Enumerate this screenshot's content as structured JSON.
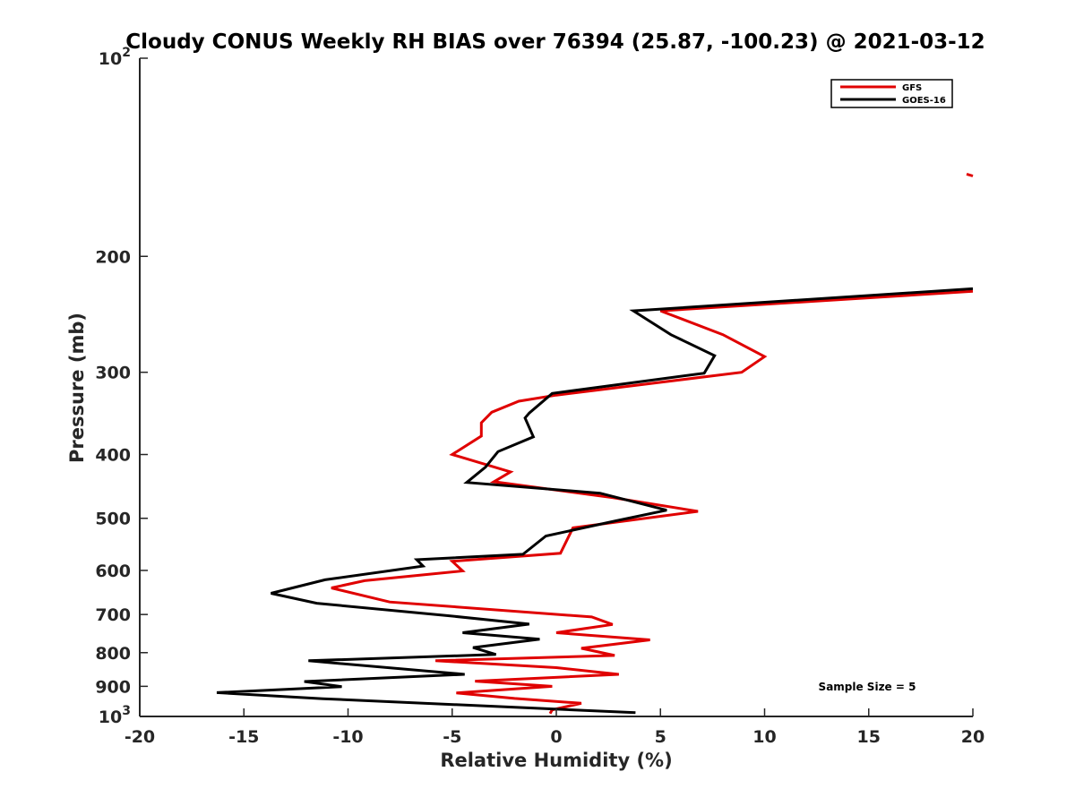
{
  "chart_data": {
    "type": "line",
    "title": "Cloudy CONUS Weekly RH BIAS over 76394 (25.87, -100.23) @ 2021-03-12",
    "xlabel": "Relative Humidity (%)",
    "ylabel": "Pressure (mb)",
    "xlim": [
      -20,
      20
    ],
    "ylim": [
      100,
      1000
    ],
    "y_scale": "log",
    "y_reversed": true,
    "x_ticks": [
      -20,
      -15,
      -10,
      -5,
      0,
      5,
      10,
      15,
      20
    ],
    "x_tick_labels": [
      "-20",
      "-15",
      "-10",
      "-5",
      "0",
      "5",
      "10",
      "15",
      "20"
    ],
    "y_ticks": [
      100,
      200,
      300,
      400,
      500,
      600,
      700,
      800,
      900,
      1000
    ],
    "y_tick_labels": [
      {
        "base": "10",
        "exp": "2"
      },
      {
        "base": "200",
        "exp": ""
      },
      {
        "base": "300",
        "exp": ""
      },
      {
        "base": "400",
        "exp": ""
      },
      {
        "base": "500",
        "exp": ""
      },
      {
        "base": "600",
        "exp": ""
      },
      {
        "base": "700",
        "exp": ""
      },
      {
        "base": "800",
        "exp": ""
      },
      {
        "base": "900",
        "exp": ""
      },
      {
        "base": "10",
        "exp": "3"
      }
    ],
    "grid": false,
    "legend_position": "top-right",
    "annotation": "Sample Size = 5",
    "series": [
      {
        "name": "GFS",
        "color": "#e00000",
        "segments": [
          [
            {
              "x": 19.7,
              "y": 150
            },
            {
              "x": 20.0,
              "y": 151
            }
          ],
          [
            {
              "x": 20.0,
              "y": 226
            },
            {
              "x": 5.0,
              "y": 242
            },
            {
              "x": 8.0,
              "y": 263
            },
            {
              "x": 10.0,
              "y": 284
            },
            {
              "x": 8.9,
              "y": 300
            },
            {
              "x": 0.0,
              "y": 325
            },
            {
              "x": -1.8,
              "y": 332
            },
            {
              "x": -3.1,
              "y": 345
            },
            {
              "x": -3.6,
              "y": 358
            },
            {
              "x": -3.6,
              "y": 375
            },
            {
              "x": -5.0,
              "y": 400
            },
            {
              "x": -2.2,
              "y": 425
            },
            {
              "x": -3.0,
              "y": 440
            },
            {
              "x": 2.7,
              "y": 465
            },
            {
              "x": 6.8,
              "y": 488
            },
            {
              "x": 0.8,
              "y": 517
            },
            {
              "x": 0.2,
              "y": 565
            },
            {
              "x": -5.0,
              "y": 581
            },
            {
              "x": -4.5,
              "y": 601
            },
            {
              "x": -9.2,
              "y": 622
            },
            {
              "x": -10.8,
              "y": 638
            },
            {
              "x": -8.0,
              "y": 670
            },
            {
              "x": 1.7,
              "y": 706
            },
            {
              "x": 2.7,
              "y": 725
            },
            {
              "x": 0.0,
              "y": 746
            },
            {
              "x": 4.5,
              "y": 765
            },
            {
              "x": 1.2,
              "y": 788
            },
            {
              "x": 2.8,
              "y": 808
            },
            {
              "x": -5.8,
              "y": 823
            },
            {
              "x": 0.0,
              "y": 843
            },
            {
              "x": 3.0,
              "y": 863
            },
            {
              "x": -3.9,
              "y": 884
            },
            {
              "x": -0.2,
              "y": 900
            },
            {
              "x": -4.8,
              "y": 921
            },
            {
              "x": -2.0,
              "y": 939
            },
            {
              "x": 1.2,
              "y": 955
            },
            {
              "x": -0.2,
              "y": 977
            },
            {
              "x": -0.3,
              "y": 990
            }
          ]
        ]
      },
      {
        "name": "GOES-16",
        "color": "#000000",
        "segments": [
          [
            {
              "x": 20.0,
              "y": 224
            },
            {
              "x": 3.7,
              "y": 242
            },
            {
              "x": 5.5,
              "y": 263
            },
            {
              "x": 7.6,
              "y": 283
            },
            {
              "x": 7.1,
              "y": 301
            },
            {
              "x": -0.2,
              "y": 323
            },
            {
              "x": -1.3,
              "y": 346
            },
            {
              "x": -1.5,
              "y": 352
            },
            {
              "x": -1.1,
              "y": 376
            },
            {
              "x": -2.8,
              "y": 396
            },
            {
              "x": -3.4,
              "y": 418
            },
            {
              "x": -4.3,
              "y": 441
            },
            {
              "x": 2.1,
              "y": 458
            },
            {
              "x": 5.3,
              "y": 486
            },
            {
              "x": 2.8,
              "y": 505
            },
            {
              "x": -0.5,
              "y": 532
            },
            {
              "x": -1.2,
              "y": 554
            },
            {
              "x": -1.6,
              "y": 567
            },
            {
              "x": -6.7,
              "y": 578
            },
            {
              "x": -6.4,
              "y": 591
            },
            {
              "x": -11.1,
              "y": 620
            },
            {
              "x": -13.7,
              "y": 650
            },
            {
              "x": -11.5,
              "y": 673
            },
            {
              "x": -5.2,
              "y": 703
            },
            {
              "x": -1.3,
              "y": 724
            },
            {
              "x": -4.5,
              "y": 746
            },
            {
              "x": -0.8,
              "y": 763
            },
            {
              "x": -4.0,
              "y": 786
            },
            {
              "x": -2.9,
              "y": 805
            },
            {
              "x": -11.9,
              "y": 823
            },
            {
              "x": -4.4,
              "y": 863
            },
            {
              "x": -12.1,
              "y": 885
            },
            {
              "x": -10.3,
              "y": 901
            },
            {
              "x": -16.3,
              "y": 920
            },
            {
              "x": -11.2,
              "y": 940
            },
            {
              "x": 3.8,
              "y": 987
            }
          ]
        ]
      }
    ]
  }
}
